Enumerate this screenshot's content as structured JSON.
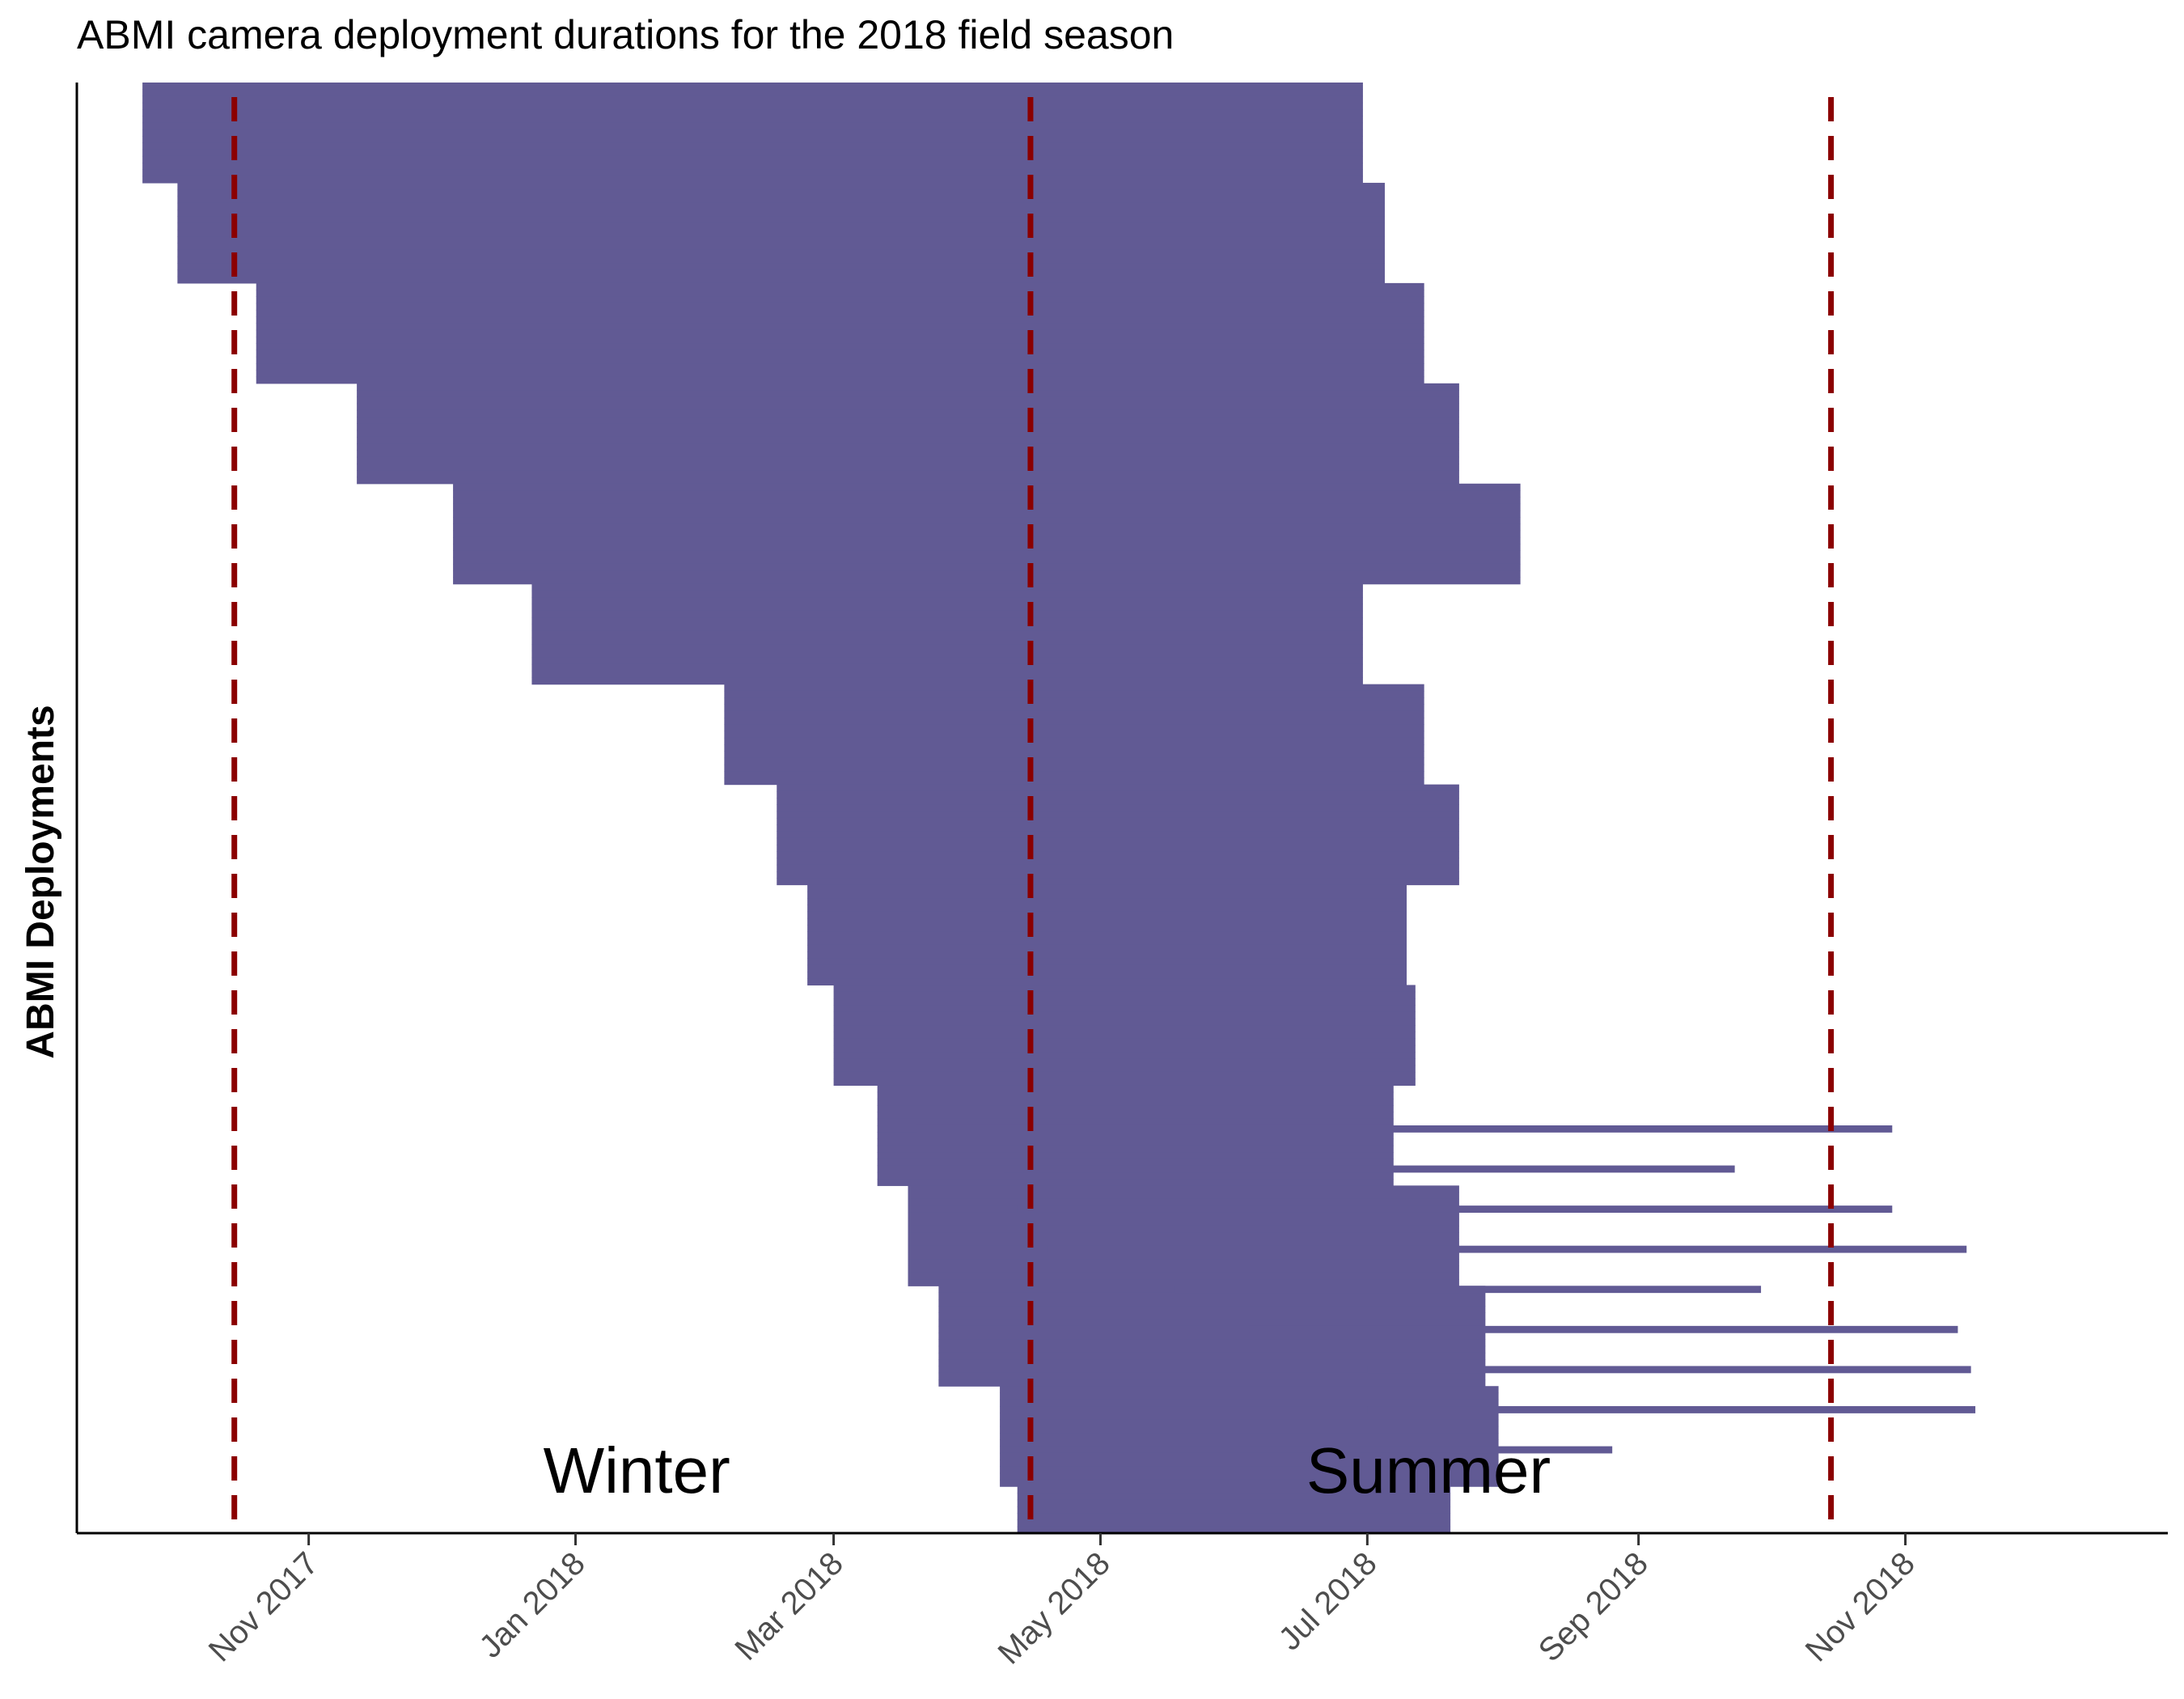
{
  "chart_data": {
    "type": "bar",
    "orientation": "horizontal-range",
    "title": "ABMI camera deployment durations for the 2018 field season",
    "xlabel": "",
    "ylabel": "ABMI Deployments",
    "x_axis_type": "date",
    "xlim": [
      "2017-09-09",
      "2018-12-31"
    ],
    "x_ticks": [
      {
        "date": "2017-11-01",
        "label": "Nov 2017"
      },
      {
        "date": "2018-01-01",
        "label": "Jan 2018"
      },
      {
        "date": "2018-03-01",
        "label": "Mar 2018"
      },
      {
        "date": "2018-05-01",
        "label": "May 2018"
      },
      {
        "date": "2018-07-01",
        "label": "Jul 2018"
      },
      {
        "date": "2018-09-01",
        "label": "Sep 2018"
      },
      {
        "date": "2018-11-01",
        "label": "Nov 2018"
      }
    ],
    "reference_lines": [
      {
        "date": "2017-10-15",
        "style": "dashed",
        "color": "#8b0000"
      },
      {
        "date": "2018-04-15",
        "style": "dashed",
        "color": "#8b0000"
      },
      {
        "date": "2018-10-15",
        "style": "dashed",
        "color": "#8b0000"
      }
    ],
    "annotations": [
      {
        "text": "Winter",
        "date": "2018-01-15"
      },
      {
        "text": "Summer",
        "date": "2018-07-15"
      }
    ],
    "bar_color": "#615a94",
    "grid": false,
    "legend": "none",
    "segments": [
      {
        "start": "2017-09-24",
        "end": "2018-06-30",
        "count": 15
      },
      {
        "start": "2017-10-02",
        "end": "2018-07-05",
        "count": 15
      },
      {
        "start": "2017-10-20",
        "end": "2018-07-14",
        "count": 15
      },
      {
        "start": "2017-11-12",
        "end": "2018-07-22",
        "count": 15
      },
      {
        "start": "2017-12-04",
        "end": "2018-08-05",
        "count": 15
      },
      {
        "start": "2017-12-22",
        "end": "2018-06-30",
        "count": 15
      },
      {
        "start": "2018-02-04",
        "end": "2018-07-14",
        "count": 15
      },
      {
        "start": "2018-02-16",
        "end": "2018-07-22",
        "count": 15
      },
      {
        "start": "2018-02-23",
        "end": "2018-07-10",
        "count": 15
      },
      {
        "start": "2018-03-01",
        "end": "2018-07-12",
        "count": 15
      },
      {
        "start": "2018-03-11",
        "end": "2018-07-07",
        "count": 15
      },
      {
        "start": "2018-03-18",
        "end": "2018-07-22",
        "count": 15
      },
      {
        "start": "2018-03-25",
        "end": "2018-07-28",
        "count": 15
      },
      {
        "start": "2018-04-08",
        "end": "2018-07-31",
        "count": 15
      },
      {
        "start": "2018-04-12",
        "end": "2018-07-20",
        "count": 7
      }
    ],
    "notable_long_deployments": [
      {
        "start": "2018-03-20",
        "end": "2018-10-29"
      },
      {
        "start": "2018-04-09",
        "end": "2018-09-23"
      },
      {
        "start": "2018-04-12",
        "end": "2018-10-29"
      },
      {
        "start": "2018-04-19",
        "end": "2018-11-15"
      },
      {
        "start": "2018-05-18",
        "end": "2018-09-29"
      },
      {
        "start": "2018-06-04",
        "end": "2018-11-13"
      },
      {
        "start": "2018-07-01",
        "end": "2018-11-16"
      },
      {
        "start": "2018-07-01",
        "end": "2018-11-17"
      },
      {
        "start": "2018-07-20",
        "end": "2018-08-26"
      }
    ]
  }
}
